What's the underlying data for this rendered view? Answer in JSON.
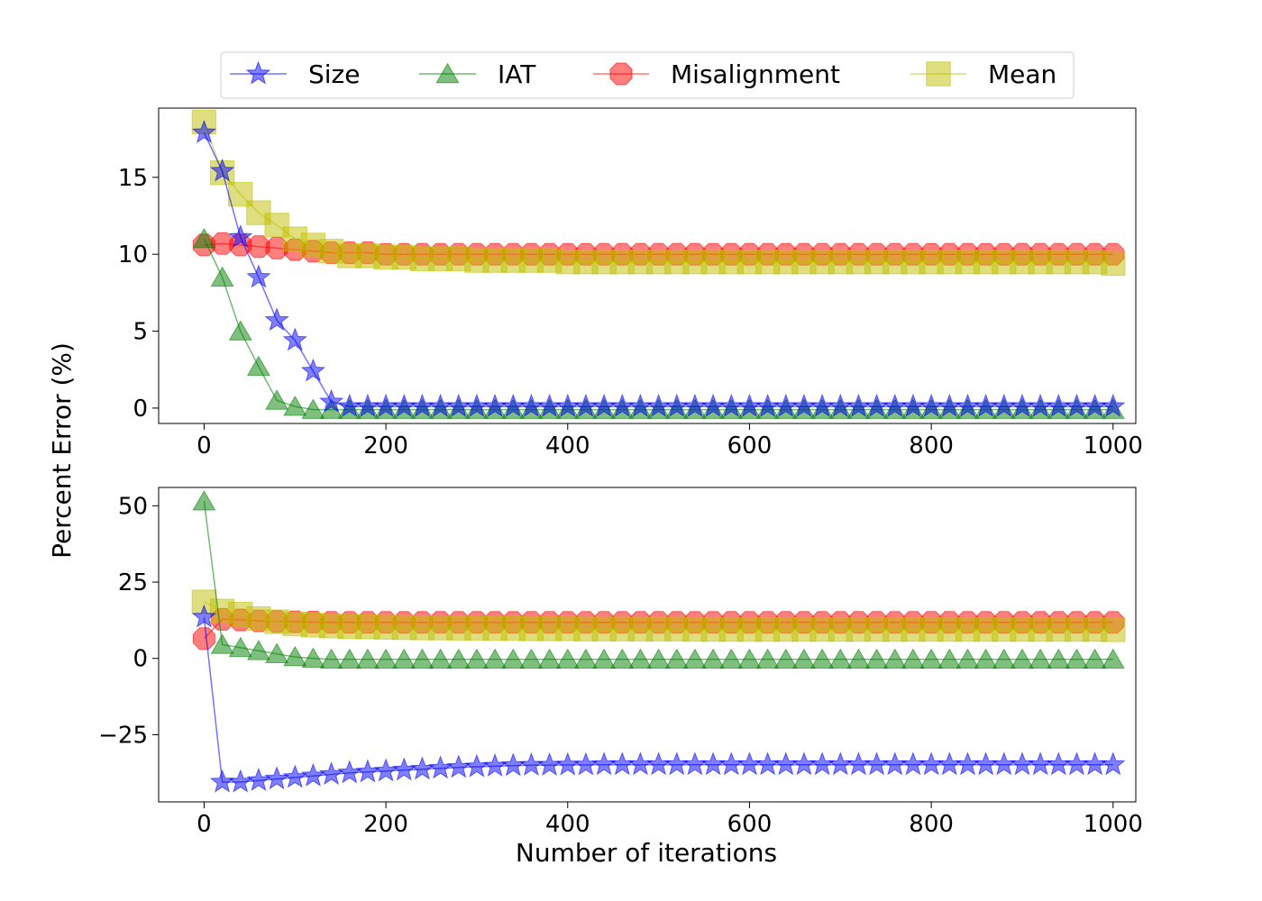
{
  "chart_data": {
    "type": "line",
    "ylabel": "Percent Error (%)",
    "xlabel": "Number of iterations",
    "legend": {
      "placement": "top-center",
      "entries": [
        {
          "label": "Size",
          "color": "#0000ff",
          "marker": "star"
        },
        {
          "label": "IAT",
          "color": "#008000",
          "marker": "triangle"
        },
        {
          "label": "Misalignment",
          "color": "#ff0000",
          "marker": "octagon"
        },
        {
          "label": "Mean",
          "color": "#bfbf00",
          "marker": "square"
        }
      ]
    },
    "panels": [
      {
        "xlim": [
          -50,
          1025
        ],
        "ylim": [
          -1,
          19.5
        ],
        "xticks": [
          0,
          200,
          400,
          600,
          800,
          1000
        ],
        "xtick_labels": [
          "0",
          "200",
          "400",
          "600",
          "800",
          "1000"
        ],
        "yticks": [
          0,
          5,
          10,
          15
        ],
        "ytick_labels": [
          "0",
          "5",
          "10",
          "15"
        ],
        "x": [
          0,
          20,
          40,
          60,
          80,
          100,
          120,
          140,
          160,
          180,
          200,
          220,
          240,
          260,
          280,
          300,
          320,
          340,
          360,
          380,
          400,
          420,
          440,
          460,
          480,
          500,
          520,
          540,
          560,
          580,
          600,
          620,
          640,
          660,
          680,
          700,
          720,
          740,
          760,
          780,
          800,
          820,
          840,
          860,
          880,
          900,
          920,
          940,
          960,
          980,
          1000
        ],
        "series": [
          {
            "name": "Size",
            "values": [
              17.9,
              15.4,
              11.1,
              8.5,
              5.7,
              4.4,
              2.4,
              0.4,
              0.1,
              0.1,
              0.1,
              0.1,
              0.1,
              0.1,
              0.1,
              0.1,
              0.1,
              0.1,
              0.1,
              0.1,
              0.1,
              0.1,
              0.1,
              0.1,
              0.1,
              0.1,
              0.1,
              0.1,
              0.1,
              0.1,
              0.1,
              0.1,
              0.1,
              0.1,
              0.1,
              0.1,
              0.1,
              0.1,
              0.1,
              0.1,
              0.1,
              0.1,
              0.1,
              0.1,
              0.1,
              0.1,
              0.1,
              0.1,
              0.1,
              0.1,
              0.1
            ]
          },
          {
            "name": "IAT",
            "values": [
              11.0,
              8.5,
              5.0,
              2.7,
              0.5,
              0.1,
              -0.1,
              -0.1,
              -0.1,
              -0.1,
              -0.1,
              -0.1,
              -0.1,
              -0.1,
              -0.1,
              -0.1,
              -0.1,
              -0.1,
              -0.1,
              -0.1,
              -0.1,
              -0.1,
              -0.1,
              -0.1,
              -0.1,
              -0.1,
              -0.1,
              -0.1,
              -0.1,
              -0.1,
              -0.1,
              -0.1,
              -0.1,
              -0.1,
              -0.1,
              -0.1,
              -0.1,
              -0.1,
              -0.1,
              -0.1,
              -0.1,
              -0.1,
              -0.1,
              -0.1,
              -0.1,
              -0.1,
              -0.1,
              -0.1,
              -0.1,
              -0.1,
              -0.1
            ]
          },
          {
            "name": "Misalignment",
            "values": [
              10.6,
              10.7,
              10.6,
              10.5,
              10.4,
              10.3,
              10.2,
              10.1,
              10.1,
              10.1,
              10.0,
              10.0,
              10.0,
              10.0,
              10.0,
              10.0,
              10.0,
              10.0,
              10.0,
              10.0,
              10.0,
              10.0,
              10.0,
              10.0,
              10.0,
              10.0,
              10.0,
              10.0,
              10.0,
              10.0,
              10.0,
              10.0,
              10.0,
              10.0,
              10.0,
              10.0,
              10.0,
              10.0,
              10.0,
              10.0,
              10.0,
              10.0,
              10.0,
              10.0,
              10.0,
              10.0,
              10.0,
              10.0,
              10.0,
              10.0,
              10.0
            ]
          },
          {
            "name": "Mean",
            "values": [
              18.6,
              15.3,
              13.9,
              12.7,
              11.9,
              11.0,
              10.6,
              10.2,
              9.9,
              9.9,
              9.8,
              9.8,
              9.7,
              9.7,
              9.7,
              9.6,
              9.6,
              9.6,
              9.6,
              9.6,
              9.5,
              9.5,
              9.5,
              9.5,
              9.5,
              9.5,
              9.5,
              9.5,
              9.5,
              9.5,
              9.5,
              9.5,
              9.5,
              9.5,
              9.5,
              9.5,
              9.5,
              9.5,
              9.5,
              9.5,
              9.5,
              9.5,
              9.5,
              9.5,
              9.5,
              9.5,
              9.5,
              9.5,
              9.5,
              9.5,
              9.4
            ]
          }
        ]
      },
      {
        "xlim": [
          -50,
          1025
        ],
        "ylim": [
          -47,
          56
        ],
        "xticks": [
          0,
          200,
          400,
          600,
          800,
          1000
        ],
        "xtick_labels": [
          "0",
          "200",
          "400",
          "600",
          "800",
          "1000"
        ],
        "yticks": [
          -25,
          0,
          25,
          50
        ],
        "ytick_labels": [
          "−25",
          "0",
          "25",
          "50"
        ],
        "x": [
          0,
          20,
          40,
          60,
          80,
          100,
          120,
          140,
          160,
          180,
          200,
          220,
          240,
          260,
          280,
          300,
          320,
          340,
          360,
          380,
          400,
          420,
          440,
          460,
          480,
          500,
          520,
          540,
          560,
          580,
          600,
          620,
          640,
          660,
          680,
          700,
          720,
          740,
          760,
          780,
          800,
          820,
          840,
          860,
          880,
          900,
          920,
          940,
          960,
          980,
          1000
        ],
        "series": [
          {
            "name": "Size",
            "values": [
              13.5,
              -40.5,
              -40.5,
              -40,
              -39.5,
              -39,
              -38.5,
              -38,
              -37.5,
              -37.2,
              -36.9,
              -36.6,
              -36.3,
              -36,
              -35.7,
              -35.5,
              -35.3,
              -35.1,
              -35,
              -35,
              -34.9,
              -34.9,
              -34.8,
              -34.8,
              -34.8,
              -34.8,
              -34.8,
              -34.8,
              -34.8,
              -34.8,
              -34.8,
              -34.8,
              -34.8,
              -34.8,
              -34.8,
              -34.8,
              -34.8,
              -34.8,
              -34.8,
              -34.8,
              -34.8,
              -34.8,
              -34.8,
              -34.8,
              -34.8,
              -34.8,
              -34.8,
              -34.8,
              -34.8,
              -34.8,
              -34.8
            ]
          },
          {
            "name": "IAT",
            "values": [
              51.5,
              4.5,
              3.5,
              2.5,
              1.5,
              0.5,
              0,
              -0.3,
              -0.3,
              -0.3,
              -0.3,
              -0.3,
              -0.3,
              -0.3,
              -0.3,
              -0.3,
              -0.3,
              -0.3,
              -0.3,
              -0.3,
              -0.3,
              -0.3,
              -0.3,
              -0.3,
              -0.3,
              -0.3,
              -0.3,
              -0.3,
              -0.3,
              -0.3,
              -0.3,
              -0.3,
              -0.3,
              -0.3,
              -0.3,
              -0.3,
              -0.3,
              -0.3,
              -0.3,
              -0.3,
              -0.3,
              -0.3,
              -0.3,
              -0.3,
              -0.3,
              -0.3,
              -0.3,
              -0.3,
              -0.3,
              -0.3,
              -0.3
            ]
          },
          {
            "name": "Misalignment",
            "values": [
              6.5,
              12.8,
              12.6,
              12.3,
              12.1,
              12.0,
              11.9,
              11.8,
              11.8,
              11.8,
              11.8,
              11.8,
              11.8,
              11.8,
              11.8,
              11.8,
              11.8,
              11.8,
              11.8,
              11.8,
              11.8,
              11.8,
              11.8,
              11.8,
              11.8,
              11.8,
              11.8,
              11.8,
              11.8,
              11.8,
              11.8,
              11.8,
              11.8,
              11.8,
              11.8,
              11.8,
              11.8,
              11.8,
              11.8,
              11.8,
              11.8,
              11.8,
              11.8,
              11.8,
              11.8,
              11.8,
              11.8,
              11.8,
              11.8,
              11.8,
              11.8
            ]
          },
          {
            "name": "Mean",
            "values": [
              18.5,
              15.5,
              14.5,
              13.0,
              12.0,
              11.3,
              10.9,
              10.6,
              10.4,
              10.3,
              10.2,
              10.1,
              10.0,
              10.0,
              9.9,
              9.9,
              9.8,
              9.8,
              9.7,
              9.7,
              9.7,
              9.6,
              9.6,
              9.6,
              9.6,
              9.6,
              9.6,
              9.5,
              9.5,
              9.5,
              9.5,
              9.5,
              9.5,
              9.5,
              9.5,
              9.5,
              9.5,
              9.5,
              9.5,
              9.5,
              9.5,
              9.5,
              9.5,
              9.5,
              9.5,
              9.5,
              9.5,
              9.5,
              9.5,
              9.5,
              9.4
            ]
          }
        ]
      }
    ]
  }
}
